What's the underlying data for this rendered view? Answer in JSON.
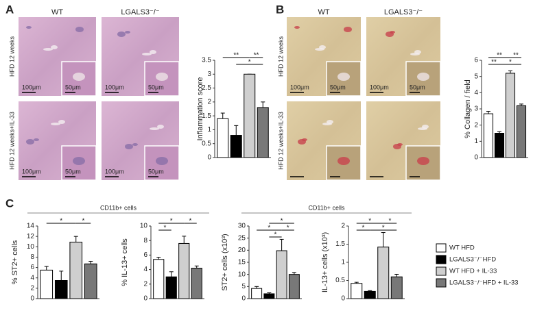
{
  "figure": {
    "A": {
      "letter": "A",
      "columns": [
        "WT",
        "LGALS3⁻/⁻"
      ],
      "rows": [
        "HFD 12 weeks",
        "HFD 12 weeks+IL-33"
      ],
      "scale_large": "100μm",
      "scale_small": "50μm"
    },
    "B": {
      "letter": "B",
      "columns": [
        "WT",
        "LGALS3⁻/⁻"
      ],
      "rows": [
        "HFD 12 weeks",
        "HFD 12 weeks+IL-33"
      ],
      "scale_large": "100μm",
      "scale_small": "50μm"
    },
    "C": {
      "letter": "C",
      "headers": [
        "CD11b+ cells",
        "CD11b+ cells"
      ]
    }
  },
  "groups": [
    {
      "name": "WT HFD",
      "color": "#ffffff"
    },
    {
      "name": "LGALS3⁻/⁻HFD",
      "color": "#000000"
    },
    {
      "name": "WT HFD + IL-33",
      "color": "#cfcfcf"
    },
    {
      "name": "LGALS3⁻/⁻HFD + IL-33",
      "color": "#787878"
    }
  ],
  "chart_data": [
    {
      "type": "bar",
      "ylabel": "Inflammation score",
      "values": [
        1.4,
        0.8,
        3.0,
        1.8
      ],
      "errors": [
        0.2,
        0.35,
        0,
        0.2
      ],
      "ylim": [
        0,
        3.5
      ],
      "yticks": [
        0,
        0.5,
        1,
        1.5,
        2,
        2.5,
        3,
        3.5
      ],
      "significance": [
        "**",
        "**",
        "*"
      ]
    },
    {
      "type": "bar",
      "ylabel": "% Collagen / field",
      "values": [
        2.7,
        1.5,
        5.2,
        3.2
      ],
      "errors": [
        0.15,
        0.1,
        0.15,
        0.1
      ],
      "ylim": [
        0,
        6
      ],
      "yticks": [
        0,
        1,
        2,
        3,
        4,
        5,
        6
      ],
      "significance": [
        "**",
        "**",
        "**",
        "*"
      ]
    },
    {
      "type": "bar",
      "ylabel": "% ST2+ cells",
      "values": [
        5.5,
        3.5,
        10.9,
        6.7
      ],
      "errors": [
        0.7,
        1.8,
        1.1,
        0.5
      ],
      "ylim": [
        0,
        14
      ],
      "yticks": [
        0,
        2,
        4,
        6,
        8,
        10,
        12,
        14
      ],
      "significance": [
        "*",
        "*"
      ]
    },
    {
      "type": "bar",
      "ylabel": "% IL-13+ cells",
      "values": [
        5.4,
        3.0,
        7.6,
        4.2
      ],
      "errors": [
        0.3,
        0.7,
        1.0,
        0.3
      ],
      "ylim": [
        0,
        10
      ],
      "yticks": [
        0,
        2,
        4,
        6,
        8,
        10
      ],
      "significance": [
        "*",
        "*",
        "*"
      ]
    },
    {
      "type": "bar",
      "ylabel": "ST2+ cells (x10³)",
      "values": [
        4.2,
        2.0,
        19.8,
        10.0
      ],
      "errors": [
        0.8,
        0.4,
        4.7,
        0.8
      ],
      "ylim": [
        0,
        30
      ],
      "yticks": [
        0,
        5,
        10,
        15,
        20,
        25,
        30
      ],
      "significance": [
        "*",
        "*",
        "*",
        "*"
      ]
    },
    {
      "type": "bar",
      "ylabel": "IL-13+ cells (x10³)",
      "values": [
        0.42,
        0.2,
        1.42,
        0.6
      ],
      "errors": [
        0.03,
        0.02,
        0.4,
        0.07
      ],
      "ylim": [
        0,
        2
      ],
      "yticks": [
        0,
        0.5,
        1,
        1.5,
        2
      ],
      "significance": [
        "*",
        "*",
        "*",
        "*"
      ]
    }
  ]
}
